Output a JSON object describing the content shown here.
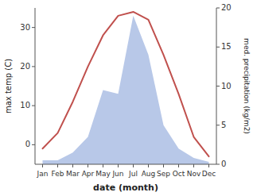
{
  "chart_data": {
    "type": "line",
    "xlabel": "date (month)",
    "ylabel": "max temp (C)",
    "y2label": "med. precipitation (kg/m2)",
    "categories": [
      "Jan",
      "Feb",
      "Mar",
      "Apr",
      "May",
      "Jun",
      "Jul",
      "Aug",
      "Sep",
      "Oct",
      "Nov",
      "Dec"
    ],
    "series": [
      {
        "type": "area",
        "axis": "y2",
        "color": "#b8c8e8",
        "values": [
          0.5,
          0.5,
          1.5,
          3.5,
          9.5,
          9.0,
          19.0,
          14.0,
          5.0,
          2.0,
          0.8,
          0.3
        ]
      },
      {
        "type": "line",
        "color": "#c0504d",
        "values": [
          -1,
          3,
          11,
          20,
          28,
          33,
          34,
          32,
          23,
          13,
          2,
          -3
        ]
      }
    ],
    "ylim": [
      -5,
      35
    ],
    "yticks": [
      0,
      10,
      20,
      30
    ],
    "y2lim": [
      0,
      20
    ],
    "y2ticks": [
      0,
      5,
      10,
      15,
      20
    ],
    "grid": false
  }
}
